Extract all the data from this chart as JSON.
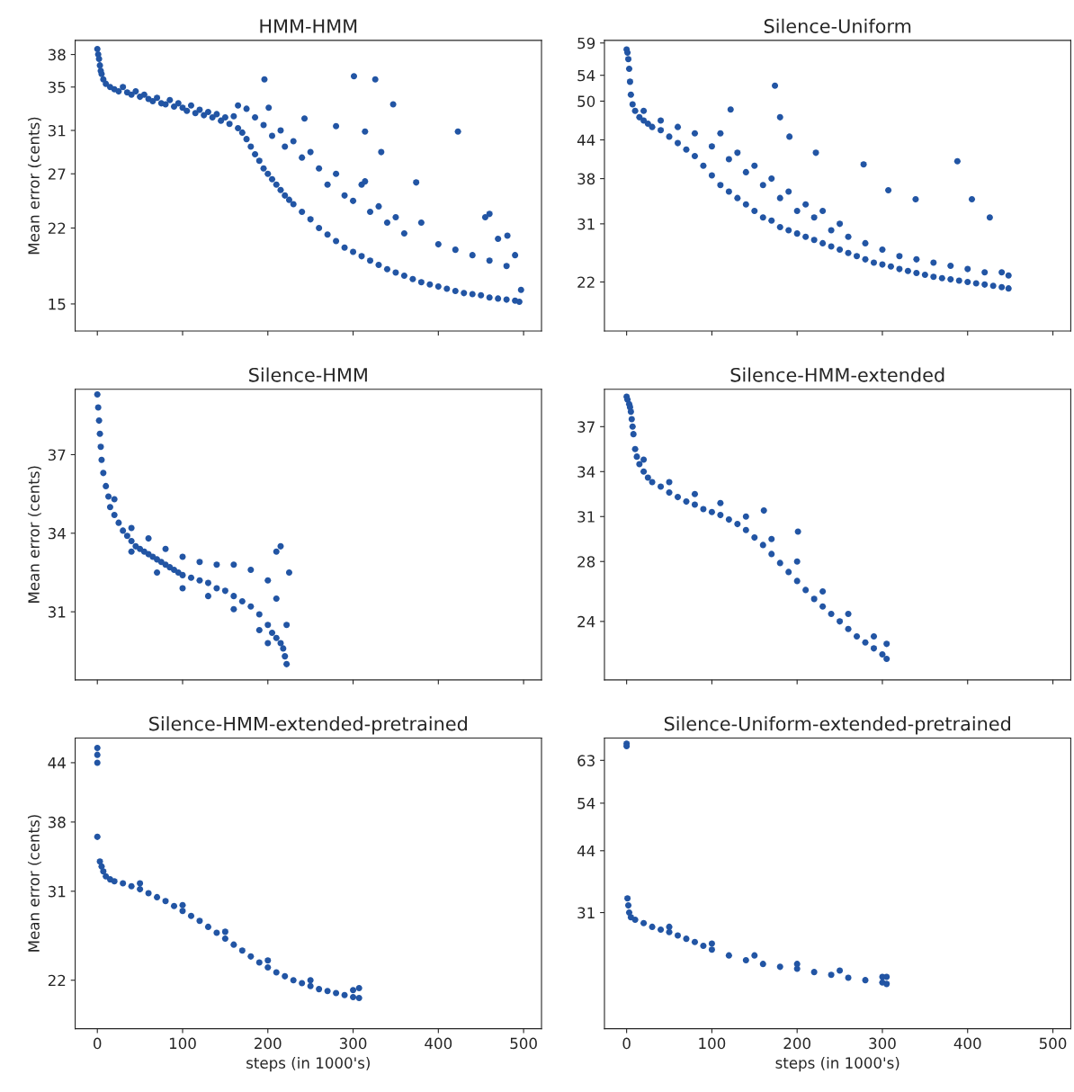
{
  "chart_data": [
    {
      "type": "scatter",
      "title": "HMM-HMM",
      "ylabel": "Mean error (cents)",
      "color": "#2255a4",
      "marker": "circle",
      "xlim": [
        -26,
        521
      ],
      "xticks": [
        0,
        100,
        200,
        300,
        400,
        500
      ],
      "ylim": [
        12.5,
        39.3
      ],
      "yticks": [
        15,
        22,
        27,
        31,
        35,
        38
      ],
      "tick_labels": "y",
      "x": [
        0,
        1,
        2,
        3,
        4,
        5,
        7,
        10,
        15,
        20,
        25,
        30,
        35,
        40,
        45,
        50,
        55,
        60,
        65,
        70,
        75,
        80,
        85,
        90,
        95,
        100,
        105,
        110,
        115,
        120,
        125,
        130,
        135,
        140,
        145,
        150,
        155,
        160,
        165,
        170,
        175,
        180,
        185,
        190,
        195,
        200,
        205,
        210,
        215,
        220,
        225,
        230,
        240,
        250,
        260,
        270,
        280,
        290,
        300,
        310,
        320,
        330,
        340,
        350,
        360,
        370,
        380,
        390,
        400,
        410,
        420,
        430,
        440,
        450,
        460,
        470,
        480,
        490,
        495,
        497,
        165,
        175,
        185,
        195,
        205,
        215,
        220,
        230,
        240,
        250,
        260,
        270,
        280,
        290,
        300,
        310,
        320,
        330,
        340,
        350,
        360,
        380,
        400,
        420,
        440,
        460,
        470,
        480,
        490,
        196,
        201,
        243,
        280,
        301,
        314,
        326,
        333,
        347,
        314,
        374,
        423,
        455,
        481,
        460
      ],
      "values": [
        38.5,
        38,
        37.6,
        37,
        36.5,
        36.2,
        35.7,
        35.3,
        35,
        34.8,
        34.6,
        35,
        34.5,
        34.3,
        34.6,
        34.1,
        34.3,
        33.9,
        33.7,
        34,
        33.5,
        33.4,
        33.8,
        33.2,
        33.5,
        33.1,
        32.8,
        33.3,
        32.6,
        32.9,
        32.4,
        32.7,
        32.2,
        32.5,
        31.9,
        32.2,
        31.6,
        32.3,
        31.2,
        30.8,
        30.2,
        29.5,
        28.8,
        28.2,
        27.5,
        27,
        26.5,
        26,
        25.5,
        25,
        24.6,
        24.2,
        23.5,
        22.8,
        22,
        21.4,
        20.8,
        20.2,
        19.8,
        19.4,
        19,
        18.6,
        18.2,
        17.9,
        17.6,
        17.3,
        17,
        16.8,
        16.6,
        16.4,
        16.2,
        16,
        15.9,
        15.8,
        15.6,
        15.5,
        15.4,
        15.3,
        15.2,
        16.3,
        33.3,
        33,
        32.2,
        31.5,
        30.5,
        31,
        29.5,
        30,
        28.5,
        29,
        27.5,
        26,
        27,
        25,
        24.5,
        26,
        23.5,
        24,
        22.5,
        23,
        21.5,
        22.5,
        20.5,
        20,
        19.5,
        19,
        21,
        18.5,
        19.5,
        35.7,
        33.1,
        32.1,
        31.4,
        36,
        30.9,
        35.7,
        29,
        33.4,
        26.3,
        26.2,
        30.9,
        23,
        21.3,
        23.3
      ]
    },
    {
      "type": "scatter",
      "title": "Silence-Uniform",
      "color": "#2255a4",
      "marker": "circle",
      "xlim": [
        -26,
        521
      ],
      "xticks": [
        0,
        100,
        200,
        300,
        400,
        500
      ],
      "ylim": [
        14.4,
        59.4
      ],
      "yticks": [
        22,
        31,
        38,
        44,
        50,
        54,
        59
      ],
      "tick_labels": "y",
      "x": [
        0,
        1,
        2,
        3,
        4,
        5,
        7,
        10,
        15,
        20,
        25,
        30,
        40,
        50,
        60,
        70,
        80,
        90,
        100,
        110,
        120,
        130,
        140,
        150,
        160,
        170,
        180,
        190,
        200,
        210,
        220,
        230,
        240,
        250,
        260,
        270,
        280,
        290,
        300,
        310,
        320,
        330,
        340,
        350,
        360,
        370,
        380,
        390,
        400,
        410,
        420,
        430,
        440,
        448,
        448,
        20,
        40,
        60,
        80,
        100,
        110,
        120,
        130,
        140,
        150,
        160,
        170,
        180,
        190,
        200,
        210,
        220,
        230,
        240,
        250,
        260,
        280,
        300,
        320,
        340,
        360,
        380,
        400,
        420,
        440,
        174,
        180,
        191,
        122,
        222,
        278,
        307,
        339,
        388,
        405,
        426
      ],
      "values": [
        58,
        57.5,
        56.5,
        55,
        53,
        51,
        49.5,
        48.5,
        47.5,
        47,
        46.5,
        46,
        45.5,
        44.5,
        43.5,
        42.5,
        41.5,
        40,
        38.5,
        37,
        36,
        35,
        34,
        33,
        32,
        31.5,
        30.5,
        30,
        29.5,
        29,
        28.5,
        28,
        27.5,
        27,
        26.5,
        26,
        25.5,
        25,
        24.7,
        24.4,
        24,
        23.7,
        23.4,
        23.1,
        22.8,
        22.6,
        22.4,
        22.2,
        22,
        21.8,
        21.6,
        21.4,
        21.2,
        21,
        23,
        48.5,
        47,
        46,
        45,
        43,
        45,
        41,
        42,
        39,
        40,
        37,
        38,
        35,
        36,
        33,
        34,
        32,
        33,
        30,
        31,
        29,
        28,
        27,
        26,
        25.5,
        25,
        24.5,
        24,
        23.5,
        23.5,
        52.4,
        47.5,
        44.5,
        48.7,
        42,
        40.2,
        36.2,
        34.8,
        40.7,
        34.8,
        32
      ]
    },
    {
      "type": "scatter",
      "title": "Silence-HMM",
      "ylabel": "Mean error (cents)",
      "color": "#2255a4",
      "marker": "circle",
      "xlim": [
        -26,
        521
      ],
      "xticks": [
        0,
        100,
        200,
        300,
        400,
        500
      ],
      "ylim": [
        28.4,
        39.5
      ],
      "yticks": [
        31,
        34,
        37
      ],
      "tick_labels": "y",
      "x": [
        0,
        1,
        2,
        3,
        4,
        5,
        7,
        10,
        13,
        15,
        20,
        25,
        30,
        35,
        40,
        45,
        50,
        55,
        60,
        65,
        70,
        75,
        80,
        85,
        90,
        95,
        100,
        110,
        120,
        130,
        140,
        150,
        160,
        170,
        180,
        190,
        200,
        205,
        210,
        215,
        218,
        220,
        222,
        20,
        40,
        60,
        80,
        100,
        120,
        140,
        160,
        180,
        200,
        210,
        215,
        225,
        210,
        222,
        40,
        70,
        100,
        130,
        160,
        190,
        200
      ],
      "values": [
        39.3,
        38.8,
        38.3,
        37.8,
        37.3,
        36.8,
        36.3,
        35.8,
        35.4,
        35,
        34.7,
        34.4,
        34.1,
        33.9,
        33.7,
        33.5,
        33.4,
        33.3,
        33.2,
        33.1,
        33,
        32.9,
        32.8,
        32.7,
        32.6,
        32.5,
        32.4,
        32.3,
        32.2,
        32.1,
        31.9,
        31.8,
        31.6,
        31.4,
        31.2,
        30.9,
        30.5,
        30.2,
        30,
        29.8,
        29.6,
        29.3,
        29,
        35.3,
        34.2,
        33.8,
        33.4,
        33.1,
        32.9,
        32.8,
        32.8,
        32.6,
        32.2,
        33.3,
        33.5,
        32.5,
        31.5,
        30.5,
        33.3,
        32.5,
        31.9,
        31.6,
        31.1,
        30.3,
        29.8
      ]
    },
    {
      "type": "scatter",
      "title": "Silence-HMM-extended",
      "color": "#2255a4",
      "marker": "circle",
      "xlim": [
        -26,
        521
      ],
      "xticks": [
        0,
        100,
        200,
        300,
        400,
        500
      ],
      "ylim": [
        20.1,
        39.5
      ],
      "yticks": [
        24,
        28,
        31,
        34,
        37
      ],
      "tick_labels": "y",
      "x": [
        0,
        1,
        3,
        4,
        5,
        6,
        7,
        8,
        10,
        12,
        15,
        20,
        25,
        30,
        40,
        50,
        60,
        70,
        80,
        90,
        100,
        110,
        120,
        130,
        140,
        150,
        160,
        170,
        180,
        190,
        200,
        210,
        220,
        230,
        240,
        250,
        260,
        270,
        280,
        290,
        300,
        305,
        305,
        20,
        50,
        80,
        110,
        140,
        170,
        200,
        230,
        260,
        290,
        161,
        201
      ],
      "values": [
        39,
        38.8,
        38.5,
        38.3,
        38,
        37.5,
        37,
        36.5,
        35.5,
        35,
        34.5,
        34,
        33.6,
        33.3,
        33,
        32.6,
        32.3,
        32,
        31.8,
        31.5,
        31.3,
        31.1,
        30.8,
        30.5,
        30.1,
        29.6,
        29.1,
        28.5,
        27.9,
        27.3,
        26.7,
        26.1,
        25.5,
        25,
        24.5,
        24,
        23.5,
        23,
        22.6,
        22.2,
        21.8,
        21.5,
        22.5,
        34.8,
        33.3,
        32.5,
        31.9,
        31,
        29.5,
        28,
        26,
        24.5,
        23,
        31.4,
        30
      ]
    },
    {
      "type": "scatter",
      "title": "Silence-HMM-extended-pretrained",
      "ylabel": "Mean error (cents)",
      "xlabel": "steps (in 1000's)",
      "color": "#2255a4",
      "marker": "circle",
      "xlim": [
        -26,
        521
      ],
      "xticks": [
        0,
        100,
        200,
        300,
        400,
        500
      ],
      "ylim": [
        17.1,
        46.5
      ],
      "yticks": [
        22,
        31,
        38,
        44
      ],
      "x": [
        0,
        0,
        0,
        0,
        3,
        5,
        7,
        10,
        15,
        20,
        30,
        40,
        50,
        60,
        70,
        80,
        90,
        100,
        110,
        120,
        130,
        140,
        150,
        160,
        170,
        180,
        190,
        200,
        210,
        220,
        230,
        240,
        250,
        260,
        270,
        280,
        290,
        300,
        307,
        307,
        50,
        100,
        150,
        200,
        250,
        300
      ],
      "values": [
        45.5,
        44.8,
        44,
        36.5,
        34,
        33.5,
        33,
        32.5,
        32.2,
        32,
        31.8,
        31.5,
        31.2,
        30.8,
        30.4,
        30,
        29.5,
        29,
        28.5,
        28,
        27.4,
        26.8,
        26.2,
        25.6,
        25,
        24.4,
        23.8,
        23.3,
        22.8,
        22.4,
        22,
        21.7,
        21.4,
        21.1,
        20.9,
        20.7,
        20.5,
        20.3,
        20.2,
        21.2,
        31.8,
        29.6,
        26.9,
        24,
        22,
        21
      ]
    },
    {
      "type": "scatter",
      "title": "Silence-Uniform-extended-pretrained",
      "xlabel": "steps (in 1000's)",
      "color": "#2255a4",
      "marker": "circle",
      "xlim": [
        -26,
        521
      ],
      "xticks": [
        0,
        100,
        200,
        300,
        400,
        500
      ],
      "ylim": [
        6.6,
        67.7
      ],
      "yticks": [
        31,
        44,
        54,
        63
      ],
      "x": [
        0,
        0,
        1,
        2,
        3,
        5,
        10,
        20,
        30,
        40,
        50,
        60,
        70,
        80,
        90,
        100,
        120,
        140,
        160,
        180,
        200,
        220,
        240,
        260,
        280,
        300,
        305,
        305,
        50,
        100,
        150,
        200,
        250,
        300
      ],
      "values": [
        66.5,
        66,
        34,
        32.5,
        31,
        30,
        29.5,
        28.8,
        28,
        27.4,
        26.9,
        26.2,
        25.5,
        24.8,
        24,
        23.2,
        22,
        21,
        20.2,
        19.6,
        19.2,
        18.5,
        17.9,
        17.3,
        16.8,
        16.3,
        16,
        17.5,
        28,
        24.5,
        22,
        20.2,
        18.8,
        17.5
      ]
    }
  ]
}
